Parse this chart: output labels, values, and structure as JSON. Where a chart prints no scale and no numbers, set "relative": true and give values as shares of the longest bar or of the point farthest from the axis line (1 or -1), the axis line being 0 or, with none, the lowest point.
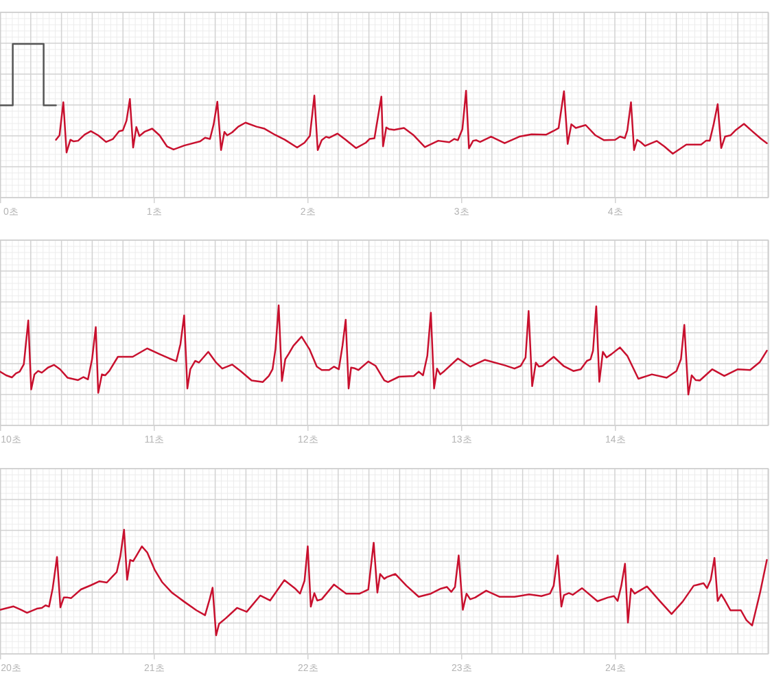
{
  "chart_data": [
    {
      "type": "line",
      "relative": true,
      "grid": true,
      "xlim": [
        0,
        5
      ],
      "xticks": [
        {
          "value": 0,
          "label": "0초"
        },
        {
          "value": 1,
          "label": "1초"
        },
        {
          "value": 2,
          "label": "2초"
        },
        {
          "value": 3,
          "label": "3초"
        },
        {
          "value": 4,
          "label": "4초"
        }
      ],
      "series": [
        {
          "color": "#555555",
          "x": [
            0,
            0.083,
            0.083,
            0.284,
            0.284,
            0.364
          ],
          "values": [
            0.44,
            0.44,
            1,
            1,
            0.44,
            0.44
          ]
        },
        {
          "color": "#c8102e",
          "x": [
            0.364,
            0.387,
            0.412,
            0.433,
            0.458,
            0.479,
            0.508,
            0.551,
            0.591,
            0.639,
            0.69,
            0.735,
            0.775,
            0.799,
            0.823,
            0.845,
            0.866,
            0.887,
            0.907,
            0.942,
            0.99,
            1.038,
            1.086,
            1.129,
            1.198,
            1.302,
            1.334,
            1.366,
            1.39,
            1.414,
            1.438,
            1.46,
            1.478,
            1.51,
            1.55,
            1.597,
            1.669,
            1.717,
            1.789,
            1.853,
            1.933,
            1.981,
            2.016,
            2.045,
            2.067,
            2.093,
            2.121,
            2.141,
            2.196,
            2.252,
            2.316,
            2.38,
            2.404,
            2.436,
            2.481,
            2.492,
            2.513,
            2.532,
            2.564,
            2.628,
            2.692,
            2.764,
            2.851,
            2.923,
            2.955,
            2.979,
            3.008,
            3.032,
            3.051,
            3.078,
            3.099,
            3.123,
            3.195,
            3.283,
            3.379,
            3.458,
            3.554,
            3.602,
            3.634,
            3.669,
            3.693,
            3.717,
            3.746,
            3.81,
            3.874,
            3.93,
            4.002,
            4.034,
            4.065,
            4.081,
            4.105,
            4.125,
            4.145,
            4.169,
            4.196,
            4.273,
            4.321,
            4.377,
            4.465,
            4.561,
            4.593,
            4.617,
            4.641,
            4.669,
            4.692,
            4.717,
            4.752,
            4.784,
            4.84,
            4.888,
            4.952,
            4.989
          ],
          "values": [
            0.127,
            0.167,
            0.469,
            0.011,
            0.127,
            0.112,
            0.118,
            0.174,
            0.205,
            0.167,
            0.107,
            0.134,
            0.205,
            0.212,
            0.301,
            0.498,
            0.056,
            0.243,
            0.161,
            0.201,
            0.228,
            0.167,
            0.067,
            0.038,
            0.074,
            0.112,
            0.145,
            0.134,
            0.268,
            0.473,
            0.033,
            0.199,
            0.167,
            0.194,
            0.246,
            0.283,
            0.246,
            0.23,
            0.172,
            0.127,
            0.056,
            0.1,
            0.163,
            0.529,
            0.033,
            0.123,
            0.154,
            0.145,
            0.183,
            0.123,
            0.051,
            0.1,
            0.134,
            0.141,
            0.52,
            0.067,
            0.239,
            0.223,
            0.217,
            0.234,
            0.167,
            0.06,
            0.118,
            0.105,
            0.134,
            0.123,
            0.223,
            0.574,
            0.049,
            0.118,
            0.123,
            0.107,
            0.156,
            0.096,
            0.156,
            0.176,
            0.174,
            0.208,
            0.234,
            0.569,
            0.089,
            0.268,
            0.234,
            0.261,
            0.167,
            0.123,
            0.127,
            0.156,
            0.141,
            0.212,
            0.469,
            0.033,
            0.127,
            0.105,
            0.071,
            0.116,
            0.067,
            0,
            0.083,
            0.083,
            0.118,
            0.118,
            0.257,
            0.451,
            0.051,
            0.156,
            0.167,
            0.212,
            0.272,
            0.212,
            0.134,
            0.096
          ]
        }
      ]
    },
    {
      "type": "line",
      "relative": true,
      "grid": true,
      "xlim": [
        10,
        15
      ],
      "xticks": [
        {
          "value": 10,
          "label": "10초"
        },
        {
          "value": 11,
          "label": "11초"
        },
        {
          "value": 12,
          "label": "12초"
        },
        {
          "value": 13,
          "label": "13초"
        },
        {
          "value": 14,
          "label": "14초"
        }
      ],
      "series": [
        {
          "color": "#c8102e",
          "x": [
            10,
            10.04,
            10.077,
            10.104,
            10.128,
            10.155,
            10.184,
            10.203,
            10.224,
            10.248,
            10.272,
            10.312,
            10.351,
            10.391,
            10.439,
            10.508,
            10.543,
            10.572,
            10.599,
            10.623,
            10.639,
            10.663,
            10.684,
            10.711,
            10.767,
            10.863,
            10.958,
            11.038,
            11.102,
            11.147,
            11.174,
            11.198,
            11.219,
            11.238,
            11.27,
            11.294,
            11.355,
            11.406,
            11.446,
            11.51,
            11.565,
            11.637,
            11.709,
            11.749,
            11.773,
            11.792,
            11.813,
            11.834,
            11.856,
            11.877,
            11.909,
            11.962,
            12.013,
            12.061,
            12.093,
            12.141,
            12.173,
            12.204,
            12.228,
            12.249,
            12.268,
            12.284,
            12.308,
            12.332,
            12.396,
            12.444,
            12.5,
            12.524,
            12.596,
            12.692,
            12.724,
            12.752,
            12.78,
            12.803,
            12.824,
            12.843,
            12.864,
            12.891,
            12.979,
            13.059,
            13.155,
            13.283,
            13.347,
            13.387,
            13.419,
            13.439,
            13.462,
            13.486,
            13.506,
            13.53,
            13.602,
            13.666,
            13.73,
            13.778,
            13.818,
            13.842,
            13.858,
            13.879,
            13.899,
            13.922,
            13.946,
            13.978,
            14.033,
            14.081,
            14.153,
            14.241,
            14.337,
            14.401,
            14.43,
            14.452,
            14.478,
            14.5,
            14.526,
            14.553,
            14.633,
            14.712,
            14.8,
            14.88,
            14.944,
            14.989
          ],
          "values": [
            0.257,
            0.215,
            0.192,
            0.238,
            0.257,
            0.34,
            0.83,
            0.057,
            0.226,
            0.264,
            0.245,
            0.302,
            0.332,
            0.283,
            0.189,
            0.162,
            0.196,
            0.17,
            0.396,
            0.755,
            0.019,
            0.226,
            0.215,
            0.264,
            0.423,
            0.423,
            0.517,
            0.453,
            0.404,
            0.374,
            0.566,
            0.887,
            0.068,
            0.283,
            0.377,
            0.358,
            0.479,
            0.358,
            0.291,
            0.336,
            0.264,
            0.158,
            0.14,
            0.208,
            0.283,
            0.509,
            1,
            0.151,
            0.396,
            0.453,
            0.547,
            0.649,
            0.509,
            0.313,
            0.275,
            0.275,
            0.313,
            0.283,
            0.547,
            0.838,
            0.068,
            0.302,
            0.294,
            0.275,
            0.37,
            0.321,
            0.158,
            0.14,
            0.2,
            0.208,
            0.257,
            0.215,
            0.434,
            0.917,
            0.068,
            0.291,
            0.226,
            0.264,
            0.404,
            0.313,
            0.389,
            0.328,
            0.291,
            0.321,
            0.415,
            0.936,
            0.094,
            0.358,
            0.313,
            0.321,
            0.423,
            0.321,
            0.264,
            0.283,
            0.377,
            0.396,
            0.491,
            0.989,
            0.143,
            0.479,
            0.415,
            0.453,
            0.528,
            0.434,
            0.177,
            0.226,
            0.189,
            0.264,
            0.396,
            0.781,
            0,
            0.215,
            0.162,
            0.158,
            0.283,
            0.208,
            0.283,
            0.275,
            0.366,
            0.491
          ]
        }
      ]
    },
    {
      "type": "line",
      "relative": true,
      "grid": true,
      "xlim": [
        20,
        25
      ],
      "xticks": [
        {
          "value": 20,
          "label": "20초"
        },
        {
          "value": 21,
          "label": "21초"
        },
        {
          "value": 22,
          "label": "22초"
        },
        {
          "value": 23,
          "label": "23초"
        },
        {
          "value": 24,
          "label": "24초"
        }
      ],
      "series": [
        {
          "color": "#c8102e",
          "x": [
            20,
            20.04,
            20.088,
            20.136,
            20.176,
            20.24,
            20.272,
            20.296,
            20.319,
            20.343,
            20.371,
            20.393,
            20.415,
            20.439,
            20.463,
            20.527,
            20.591,
            20.647,
            20.695,
            20.735,
            20.759,
            20.783,
            20.807,
            20.827,
            20.847,
            20.866,
            20.887,
            20.923,
            20.958,
            21.006,
            21.054,
            21.118,
            21.198,
            21.278,
            21.334,
            21.366,
            21.383,
            21.406,
            21.425,
            21.47,
            21.542,
            21.605,
            21.693,
            21.757,
            21.85,
            21.917,
            21.952,
            21.981,
            22.002,
            22.022,
            22.045,
            22.064,
            22.093,
            22.173,
            22.252,
            22.34,
            22.396,
            22.431,
            22.455,
            22.473,
            22.5,
            22.516,
            22.572,
            22.644,
            22.724,
            22.803,
            22.867,
            22.907,
            22.936,
            22.96,
            22.984,
            23.011,
            23.035,
            23.059,
            23.091,
            23.163,
            23.251,
            23.347,
            23.442,
            23.522,
            23.578,
            23.602,
            23.628,
            23.652,
            23.669,
            23.701,
            23.727,
            23.786,
            23.887,
            23.954,
            23.994,
            24.018,
            24.042,
            24.066,
            24.085,
            24.105,
            24.129,
            24.209,
            24.289,
            24.369,
            24.441,
            24.513,
            24.577,
            24.6,
            24.624,
            24.648,
            24.669,
            24.692,
            24.712,
            24.752,
            24.82,
            24.856,
            24.893,
            24.944,
            24.989
          ],
          "values": [
            0.242,
            0.256,
            0.274,
            0.242,
            0.214,
            0.253,
            0.26,
            0.284,
            0.272,
            0.447,
            0.742,
            0.265,
            0.358,
            0.358,
            0.353,
            0.435,
            0.474,
            0.512,
            0.5,
            0.563,
            0.598,
            0.749,
            1,
            0.526,
            0.714,
            0.702,
            0.753,
            0.842,
            0.784,
            0.621,
            0.505,
            0.405,
            0.319,
            0.237,
            0.191,
            0.353,
            0.451,
            0,
            0.109,
            0.163,
            0.26,
            0.223,
            0.377,
            0.33,
            0.523,
            0.447,
            0.395,
            0.516,
            0.842,
            0.272,
            0.4,
            0.33,
            0.342,
            0.481,
            0.395,
            0.395,
            0.435,
            0.877,
            0.405,
            0.581,
            0.535,
            0.551,
            0.581,
            0.47,
            0.365,
            0.395,
            0.442,
            0.458,
            0.412,
            0.458,
            0.756,
            0.242,
            0.395,
            0.342,
            0.358,
            0.423,
            0.365,
            0.365,
            0.388,
            0.372,
            0.395,
            0.47,
            0.756,
            0.272,
            0.381,
            0.4,
            0.384,
            0.447,
            0.323,
            0.358,
            0.372,
            0.326,
            0.47,
            0.679,
            0.121,
            0.442,
            0.395,
            0.463,
            0.33,
            0.202,
            0.319,
            0.47,
            0.493,
            0.447,
            0.528,
            0.733,
            0.326,
            0.388,
            0.342,
            0.237,
            0.237,
            0.144,
            0.093,
            0.4,
            0.714
          ]
        }
      ]
    }
  ]
}
